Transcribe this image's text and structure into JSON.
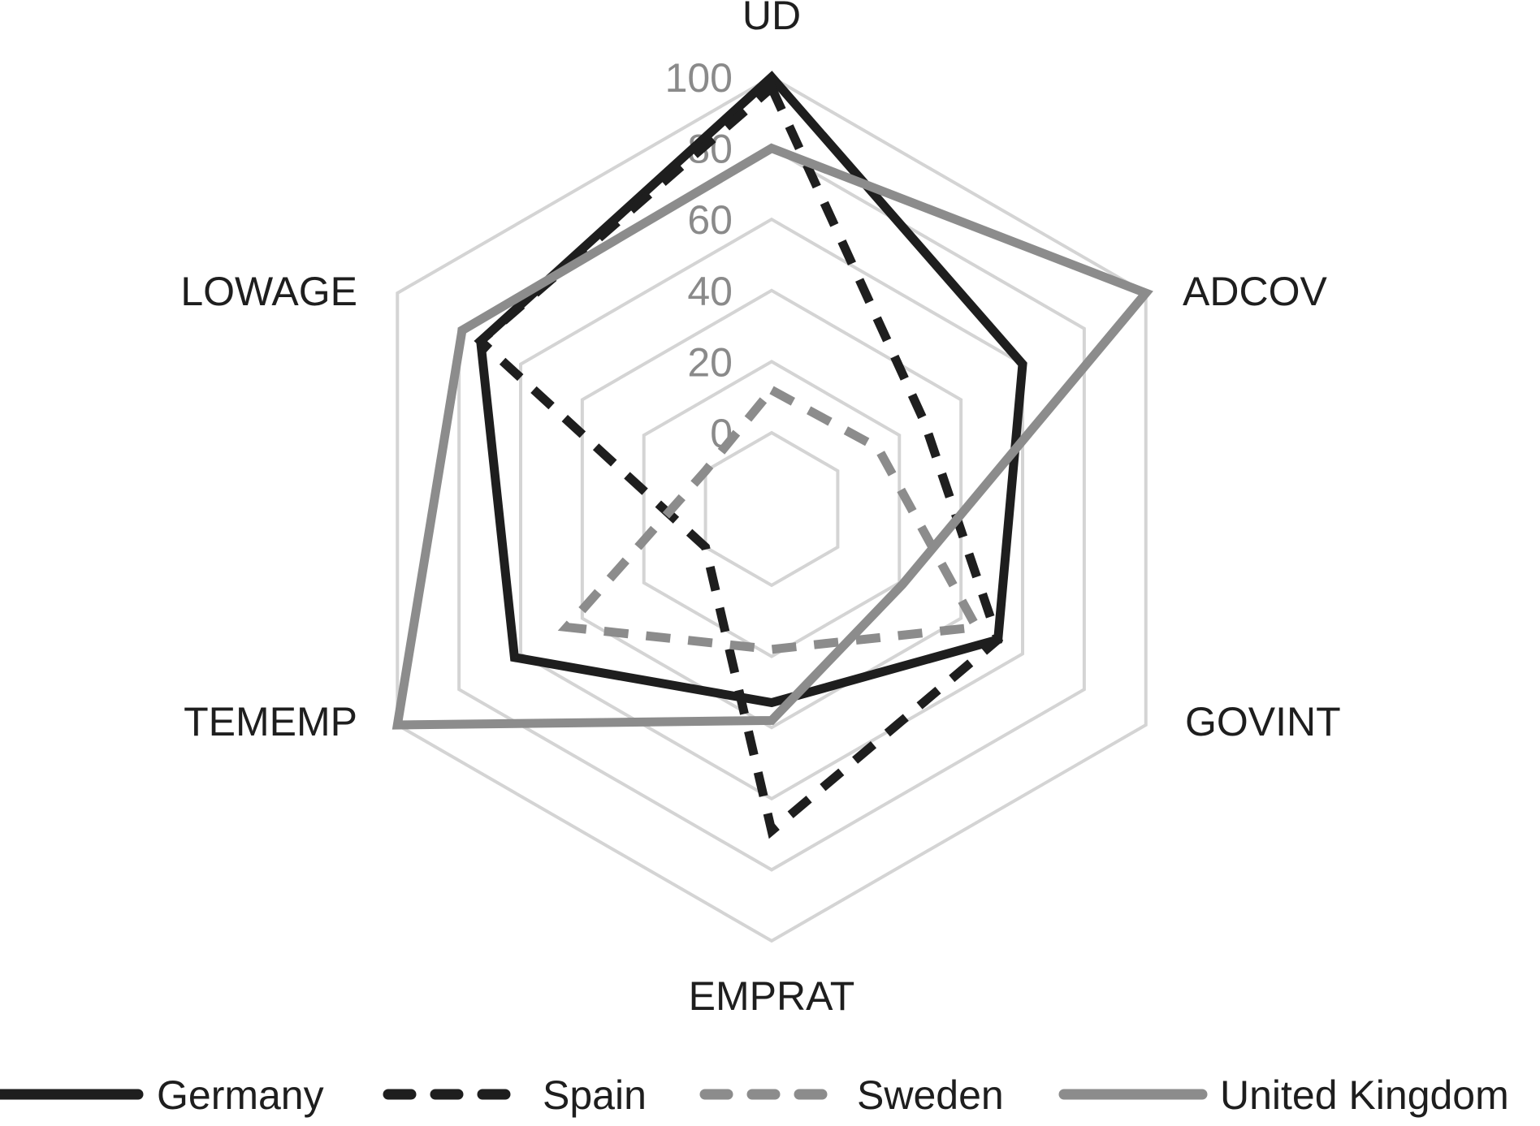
{
  "chart_data": {
    "type": "radar",
    "axes": [
      "UD",
      "ADCOV",
      "GOVINT",
      "EMPRAT",
      "TEMEMP",
      "LOWAGE"
    ],
    "rlim": [
      0,
      100
    ],
    "ticks": [
      "0",
      "20",
      "40",
      "60",
      "80",
      "100"
    ],
    "grid": true,
    "legend": "bottom",
    "series": [
      {
        "name": "Germany",
        "values": [
          100,
          60,
          52,
          33,
          62,
          73
        ],
        "color": "#1e1e1e",
        "dash": "solid"
      },
      {
        "name": "Spain",
        "values": [
          97,
          28,
          52,
          69,
          0,
          73
        ],
        "color": "#1e1e1e",
        "dash": "dashed"
      },
      {
        "name": "Sweden",
        "values": [
          12,
          13,
          45,
          18,
          45,
          0
        ],
        "color": "#8c8c8c",
        "dash": "dashed"
      },
      {
        "name": "United Kingdom",
        "values": [
          80,
          100,
          21,
          38,
          100,
          79
        ],
        "color": "#8c8c8c",
        "dash": "solid"
      }
    ]
  }
}
